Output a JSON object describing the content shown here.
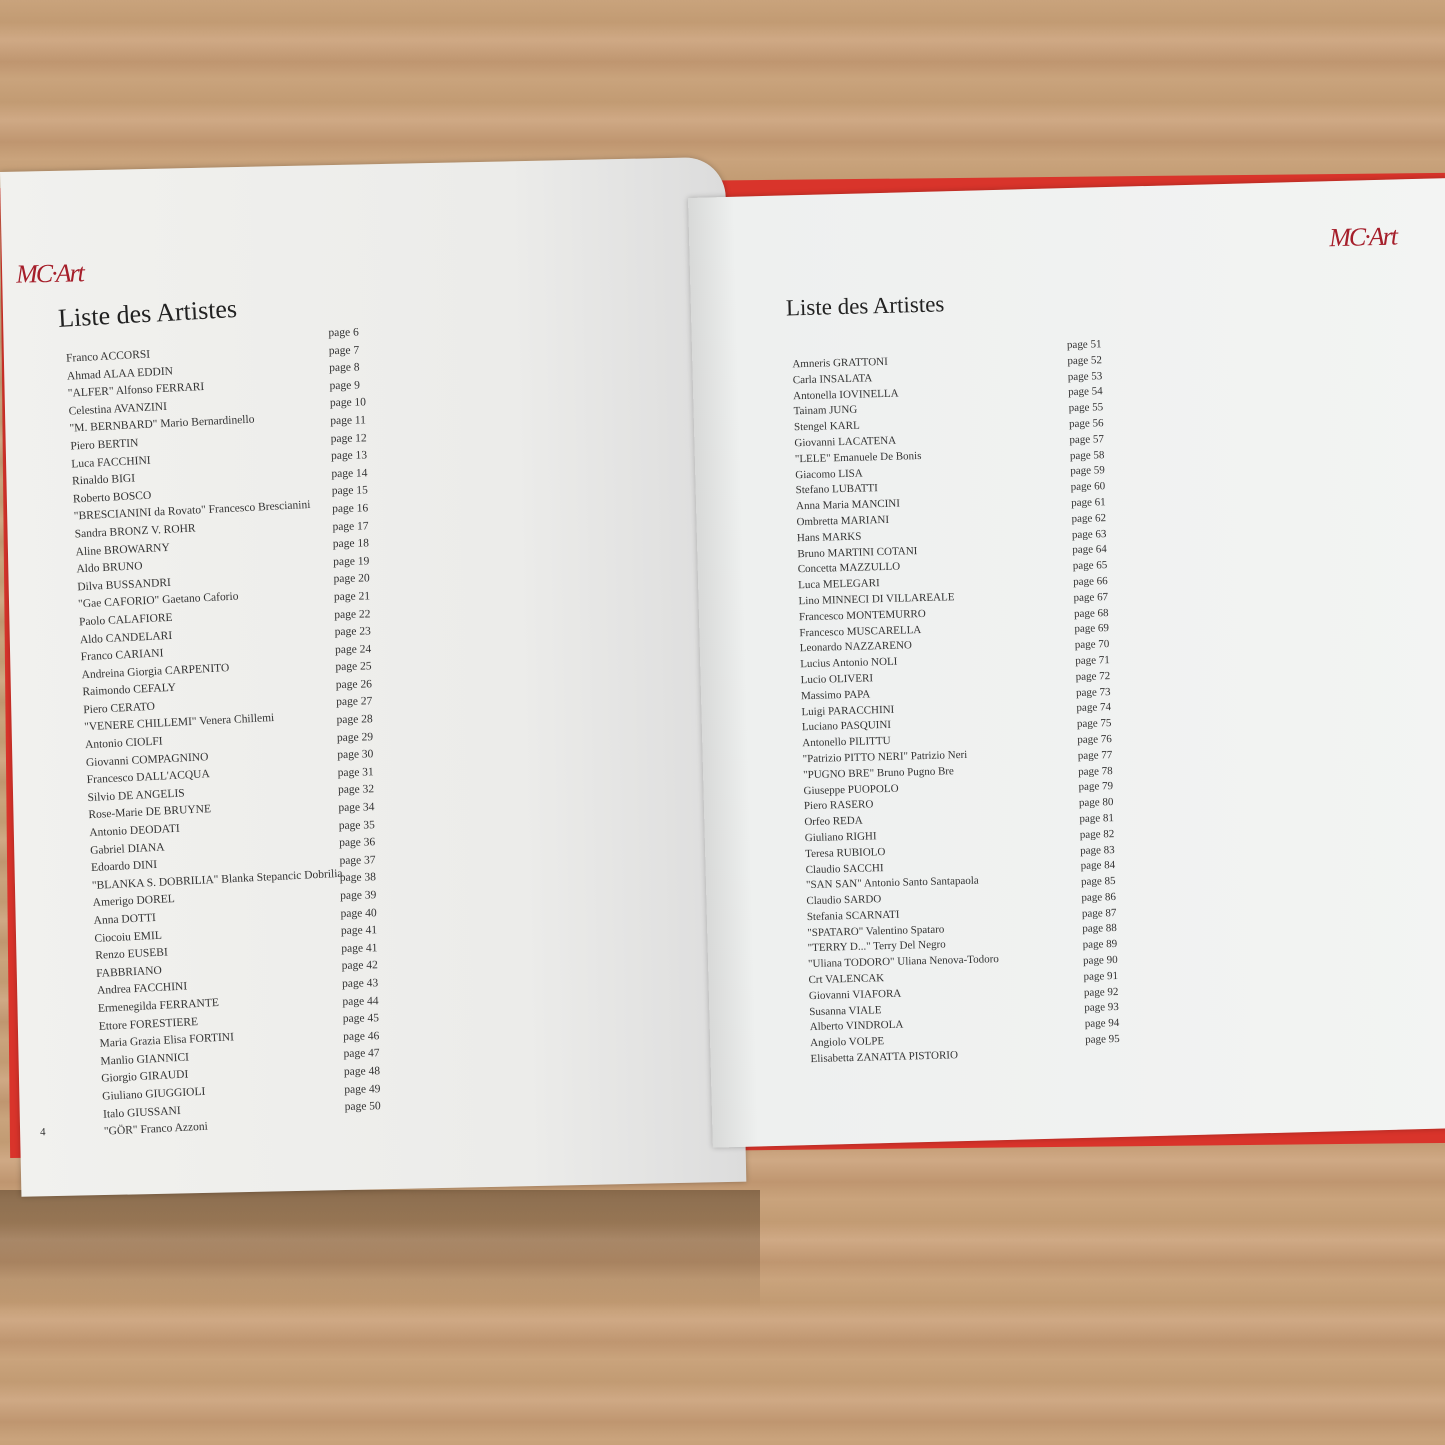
{
  "left_page": {
    "logo": "MC Art",
    "title": "Liste des Artistes",
    "folio": "4",
    "names": [
      "Franco ACCORSI",
      "Ahmad ALAA EDDIN",
      "\"ALFER\" Alfonso FERRARI",
      "Celestina AVANZINI",
      "\"M. BERNBARD\" Mario Bernardinello",
      "Piero BERTIN",
      "Luca FACCHINI",
      "Rinaldo BIGI",
      "Roberto BOSCO",
      "\"BRESCIANINI da Rovato\" Francesco Brescianini",
      "Sandra BRONZ V. ROHR",
      "Aline BROWARNY",
      "Aldo BRUNO",
      "Dilva BUSSANDRI",
      "\"Gae CAFORIO\" Gaetano Caforio",
      "Paolo CALAFIORE",
      "Aldo CANDELARI",
      "Franco CARIANI",
      "Andreina Giorgia CARPENITO",
      "Raimondo CEFALY",
      "Piero CERATO",
      "\"VENERE CHILLEMI\" Venera Chillemi",
      "Antonio CIOLFI",
      "Giovanni COMPAGNINO",
      "Francesco DALL'ACQUA",
      "Silvio DE ANGELIS",
      "Rose-Marie DE BRUYNE",
      "Antonio DEODATI",
      "Gabriel DIANA",
      "Edoardo DINI",
      "\"BLANKA S. DOBRILIA\" Blanka Stepancic Dobrilia",
      "Amerigo DOREL",
      "Anna DOTTI",
      "Ciocoiu EMIL",
      "Renzo EUSEBI",
      "FABBRIANO",
      "Andrea FACCHINI",
      "Ermenegilda FERRANTE",
      "Ettore FORESTIERE",
      "Maria Grazia Elisa FORTINI",
      "Manlio GIANNICI",
      "Giorgio GIRAUDI",
      "Giuliano GIUGGIOLI",
      "Italo GIUSSANI",
      "\"GÖR\" Franco Azzoni"
    ],
    "pages": [
      "page 6",
      "page 7",
      "page 8",
      "page 9",
      "page 10",
      "page 11",
      "page 12",
      "page 13",
      "page 14",
      "page 15",
      "page 16",
      "page 17",
      "page 18",
      "page 19",
      "page 20",
      "page 21",
      "page 22",
      "page 23",
      "page 24",
      "page 25",
      "page 26",
      "page 27",
      "page 28",
      "page 29",
      "page 30",
      "page 31",
      "page 32",
      "page 34",
      "page 35",
      "page 36",
      "page 37",
      "page 38",
      "page 39",
      "page 40",
      "page 41",
      "page 41",
      "page 42",
      "page 43",
      "page 44",
      "page 45",
      "page 46",
      "page 47",
      "page 48",
      "page 49",
      "page 50"
    ]
  },
  "right_page": {
    "logo": "MC Art",
    "title": "Liste des Artistes",
    "names": [
      "Amneris GRATTONI",
      "Carla INSALATA",
      "Antonella IOVINELLA",
      "Tainam JUNG",
      "Stengel KARL",
      "Giovanni LACATENA",
      "\"LELE\" Emanuele De Bonis",
      "Giacomo LISA",
      "Stefano LUBATTI",
      "Anna Maria MANCINI",
      "Ombretta MARIANI",
      "Hans MARKS",
      "Bruno MARTINI COTANI",
      "Concetta MAZZULLO",
      "Luca MELEGARI",
      "Lino MINNECI DI VILLAREALE",
      "Francesco MONTEMURRO",
      "Francesco MUSCARELLA",
      "Leonardo NAZZARENO",
      "Lucius Antonio NOLI",
      "Lucio OLIVERI",
      "Massimo PAPA",
      "Luigi PARACCHINI",
      "Luciano PASQUINI",
      "Antonello PILITTU",
      "\"Patrizio PITTO NERI\" Patrizio Neri",
      "\"PUGNO BRE\" Bruno Pugno Bre",
      "Giuseppe PUOPOLO",
      "Piero RASERO",
      "Orfeo REDA",
      "Giuliano RIGHI",
      "Teresa RUBIOLO",
      "Claudio SACCHI",
      "\"SAN SAN\" Antonio Santo Santapaola",
      "Claudio SARDO",
      "Stefania SCARNATI",
      "\"SPATARO\" Valentino Spataro",
      "\"TERRY D...\" Terry Del Negro",
      "\"Uliana TODORO\" Uliana Nenova-Todoro",
      "Crt VALENCAK",
      "Giovanni VIAFORA",
      "Susanna VIALE",
      "Alberto VINDROLA",
      "Angiolo VOLPE",
      "Elisabetta ZANATTA PISTORIO"
    ],
    "pages": [
      "page 51",
      "page 52",
      "page 53",
      "page 54",
      "page 55",
      "page 56",
      "page 57",
      "page 58",
      "page 59",
      "page 60",
      "page 61",
      "page 62",
      "page 63",
      "page 64",
      "page 65",
      "page 66",
      "page 67",
      "page 68",
      "page 69",
      "page 70",
      "page 71",
      "page 72",
      "page 73",
      "page 74",
      "page 75",
      "page 76",
      "page 77",
      "page 78",
      "page 79",
      "page 80",
      "page 81",
      "page 82",
      "page 83",
      "page 84",
      "page 85",
      "page 86",
      "page 87",
      "page 88",
      "page 89",
      "page 90",
      "page 91",
      "page 92",
      "page 93",
      "page 94",
      "page 95"
    ]
  },
  "colors": {
    "logo": "#a51e2a",
    "cover": "#d9342b",
    "paper": "#f2f2ef"
  }
}
